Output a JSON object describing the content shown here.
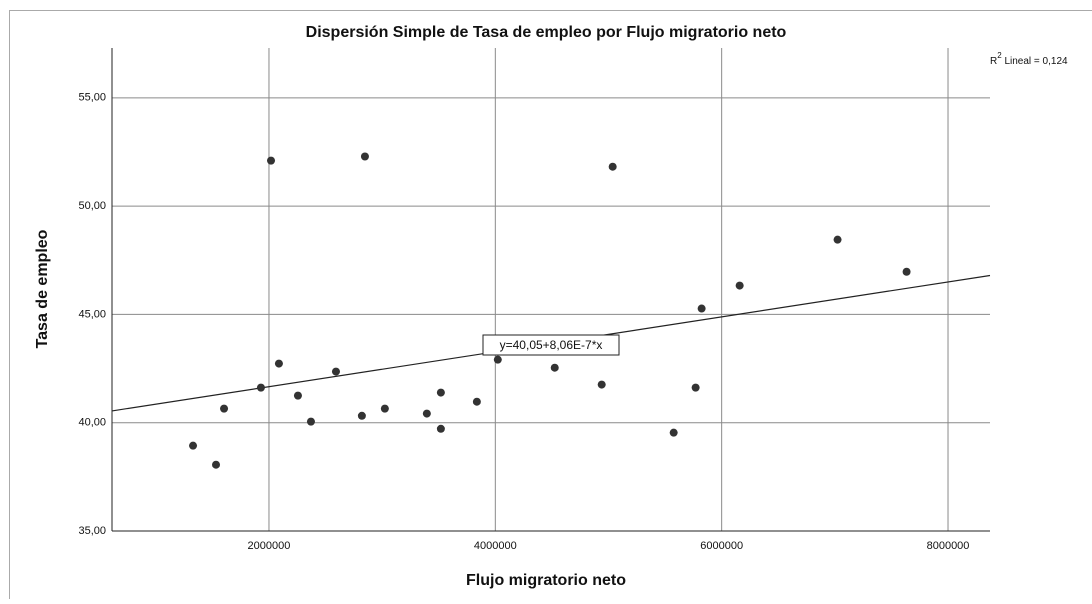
{
  "chart_data": {
    "type": "scatter",
    "title": "Dispersión Simple de Tasa de empleo por Flujo migratorio neto",
    "x_label": "Flujo migratorio neto",
    "y_label": "Tasa de empleo",
    "xlim": [
      613000,
      8371000
    ],
    "ylim": [
      35,
      57.3
    ],
    "xticks": [
      2000000,
      4000000,
      6000000,
      8000000
    ],
    "yticks": [
      {
        "value": 35,
        "label": "35,00"
      },
      {
        "value": 40,
        "label": "40,00"
      },
      {
        "value": 45,
        "label": "45,00"
      },
      {
        "value": 50,
        "label": "50,00"
      },
      {
        "value": 55,
        "label": "55,00"
      }
    ],
    "grid": true,
    "color": "#333333",
    "x": [
      1329000,
      1532000,
      1603000,
      1929000,
      2018000,
      2088000,
      2256000,
      2371000,
      2592000,
      2821000,
      2848000,
      3024000,
      3395000,
      3519000,
      3519000,
      3837000,
      4022000,
      4525000,
      4940000,
      5037000,
      5576000,
      5770000,
      5823000,
      6159000,
      7024000,
      7634000
    ],
    "values": [
      38.94,
      38.06,
      40.65,
      41.62,
      52.1,
      42.73,
      41.25,
      40.05,
      42.36,
      40.32,
      52.29,
      40.65,
      40.42,
      41.39,
      39.72,
      40.97,
      42.91,
      42.54,
      41.76,
      51.82,
      39.54,
      41.62,
      45.27,
      46.33,
      48.45,
      46.97
    ],
    "fit": {
      "intercept": 40.05,
      "slope": 8.06e-07,
      "label": "y=40,05+8,06E-7*x"
    },
    "r2_label": {
      "prefix": "R",
      "sup": "2",
      "rest": " Lineal = 0,124"
    }
  }
}
